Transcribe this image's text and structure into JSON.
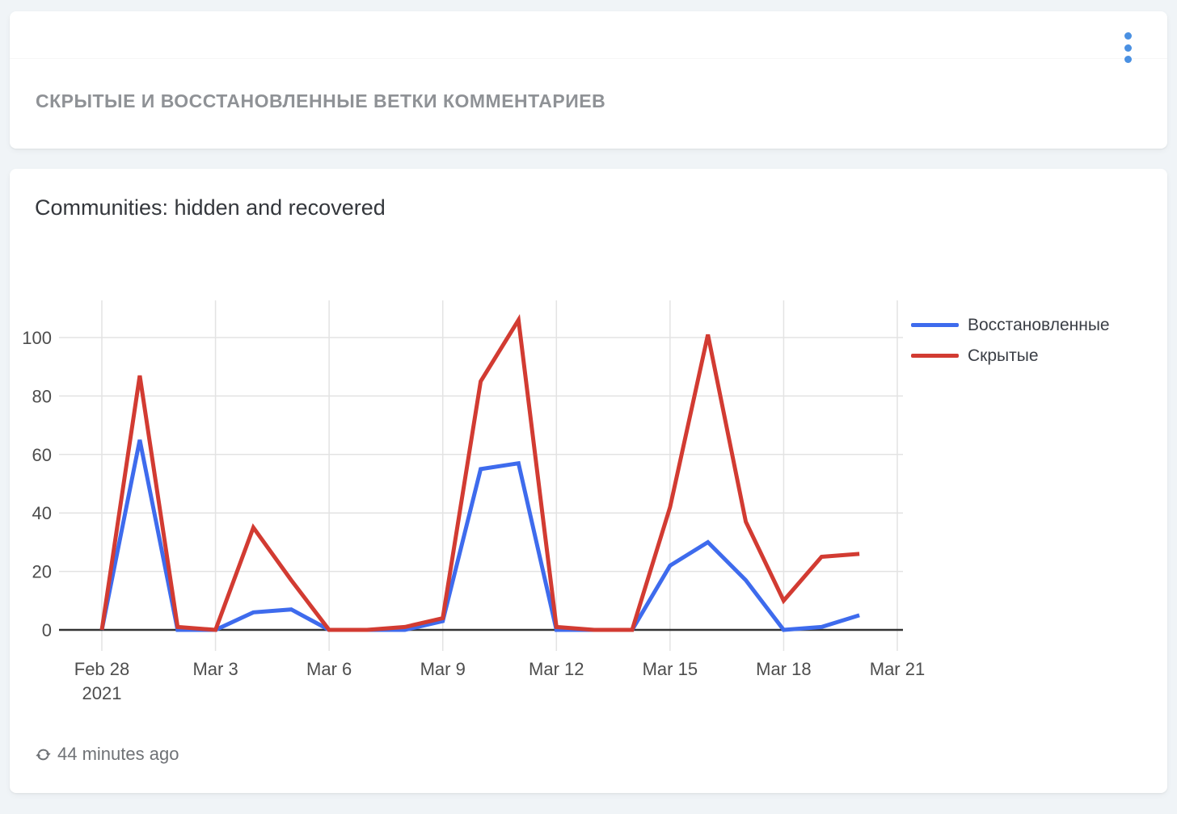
{
  "header_card": {
    "title": "СКРЫТЫЕ И ВОССТАНОВЛЕННЫЕ ВЕТКИ КОММЕНТАРИЕВ",
    "menu_icon": "kebab-menu",
    "accent_color": "#4a90e2"
  },
  "chart_card": {
    "title": "Communities: hidden and recovered",
    "footer": {
      "refresh_icon": "refresh",
      "last_updated": "44 minutes ago"
    }
  },
  "chart_data": {
    "type": "line",
    "title": "Communities: hidden and recovered",
    "x": [
      "Feb 28",
      "Mar 1",
      "Mar 2",
      "Mar 3",
      "Mar 4",
      "Mar 5",
      "Mar 6",
      "Mar 7",
      "Mar 8",
      "Mar 9",
      "Mar 10",
      "Mar 11",
      "Mar 12",
      "Mar 13",
      "Mar 14",
      "Mar 15",
      "Mar 16",
      "Mar 17",
      "Mar 18",
      "Mar 19",
      "Mar 20"
    ],
    "x_tick_labels": [
      "Feb 28",
      "Mar 3",
      "Mar 6",
      "Mar 9",
      "Mar 12",
      "Mar 15",
      "Mar 18",
      "Mar 21"
    ],
    "x_first_tick_sublabel": "2021",
    "y_ticks": [
      0,
      20,
      40,
      60,
      80,
      100
    ],
    "ylim": [
      0,
      113
    ],
    "grid": true,
    "legend_position": "right",
    "axis_color": "#333333",
    "gridline_color": "#e3e3e3",
    "tick_label_color": "#4d4d4d",
    "series": [
      {
        "key": "recovered",
        "name": "Восстановленные",
        "color": "#3e6bed",
        "values": [
          0,
          65,
          0,
          0,
          6,
          7,
          0,
          0,
          0,
          3,
          55,
          57,
          0,
          0,
          0,
          22,
          30,
          17,
          0,
          1,
          5
        ]
      },
      {
        "key": "hidden",
        "name": "Скрытые",
        "color": "#d23b32",
        "values": [
          0,
          87,
          1,
          0,
          35,
          17,
          0,
          0,
          1,
          4,
          85,
          106,
          1,
          0,
          0,
          42,
          101,
          37,
          10,
          25,
          26
        ]
      }
    ]
  }
}
